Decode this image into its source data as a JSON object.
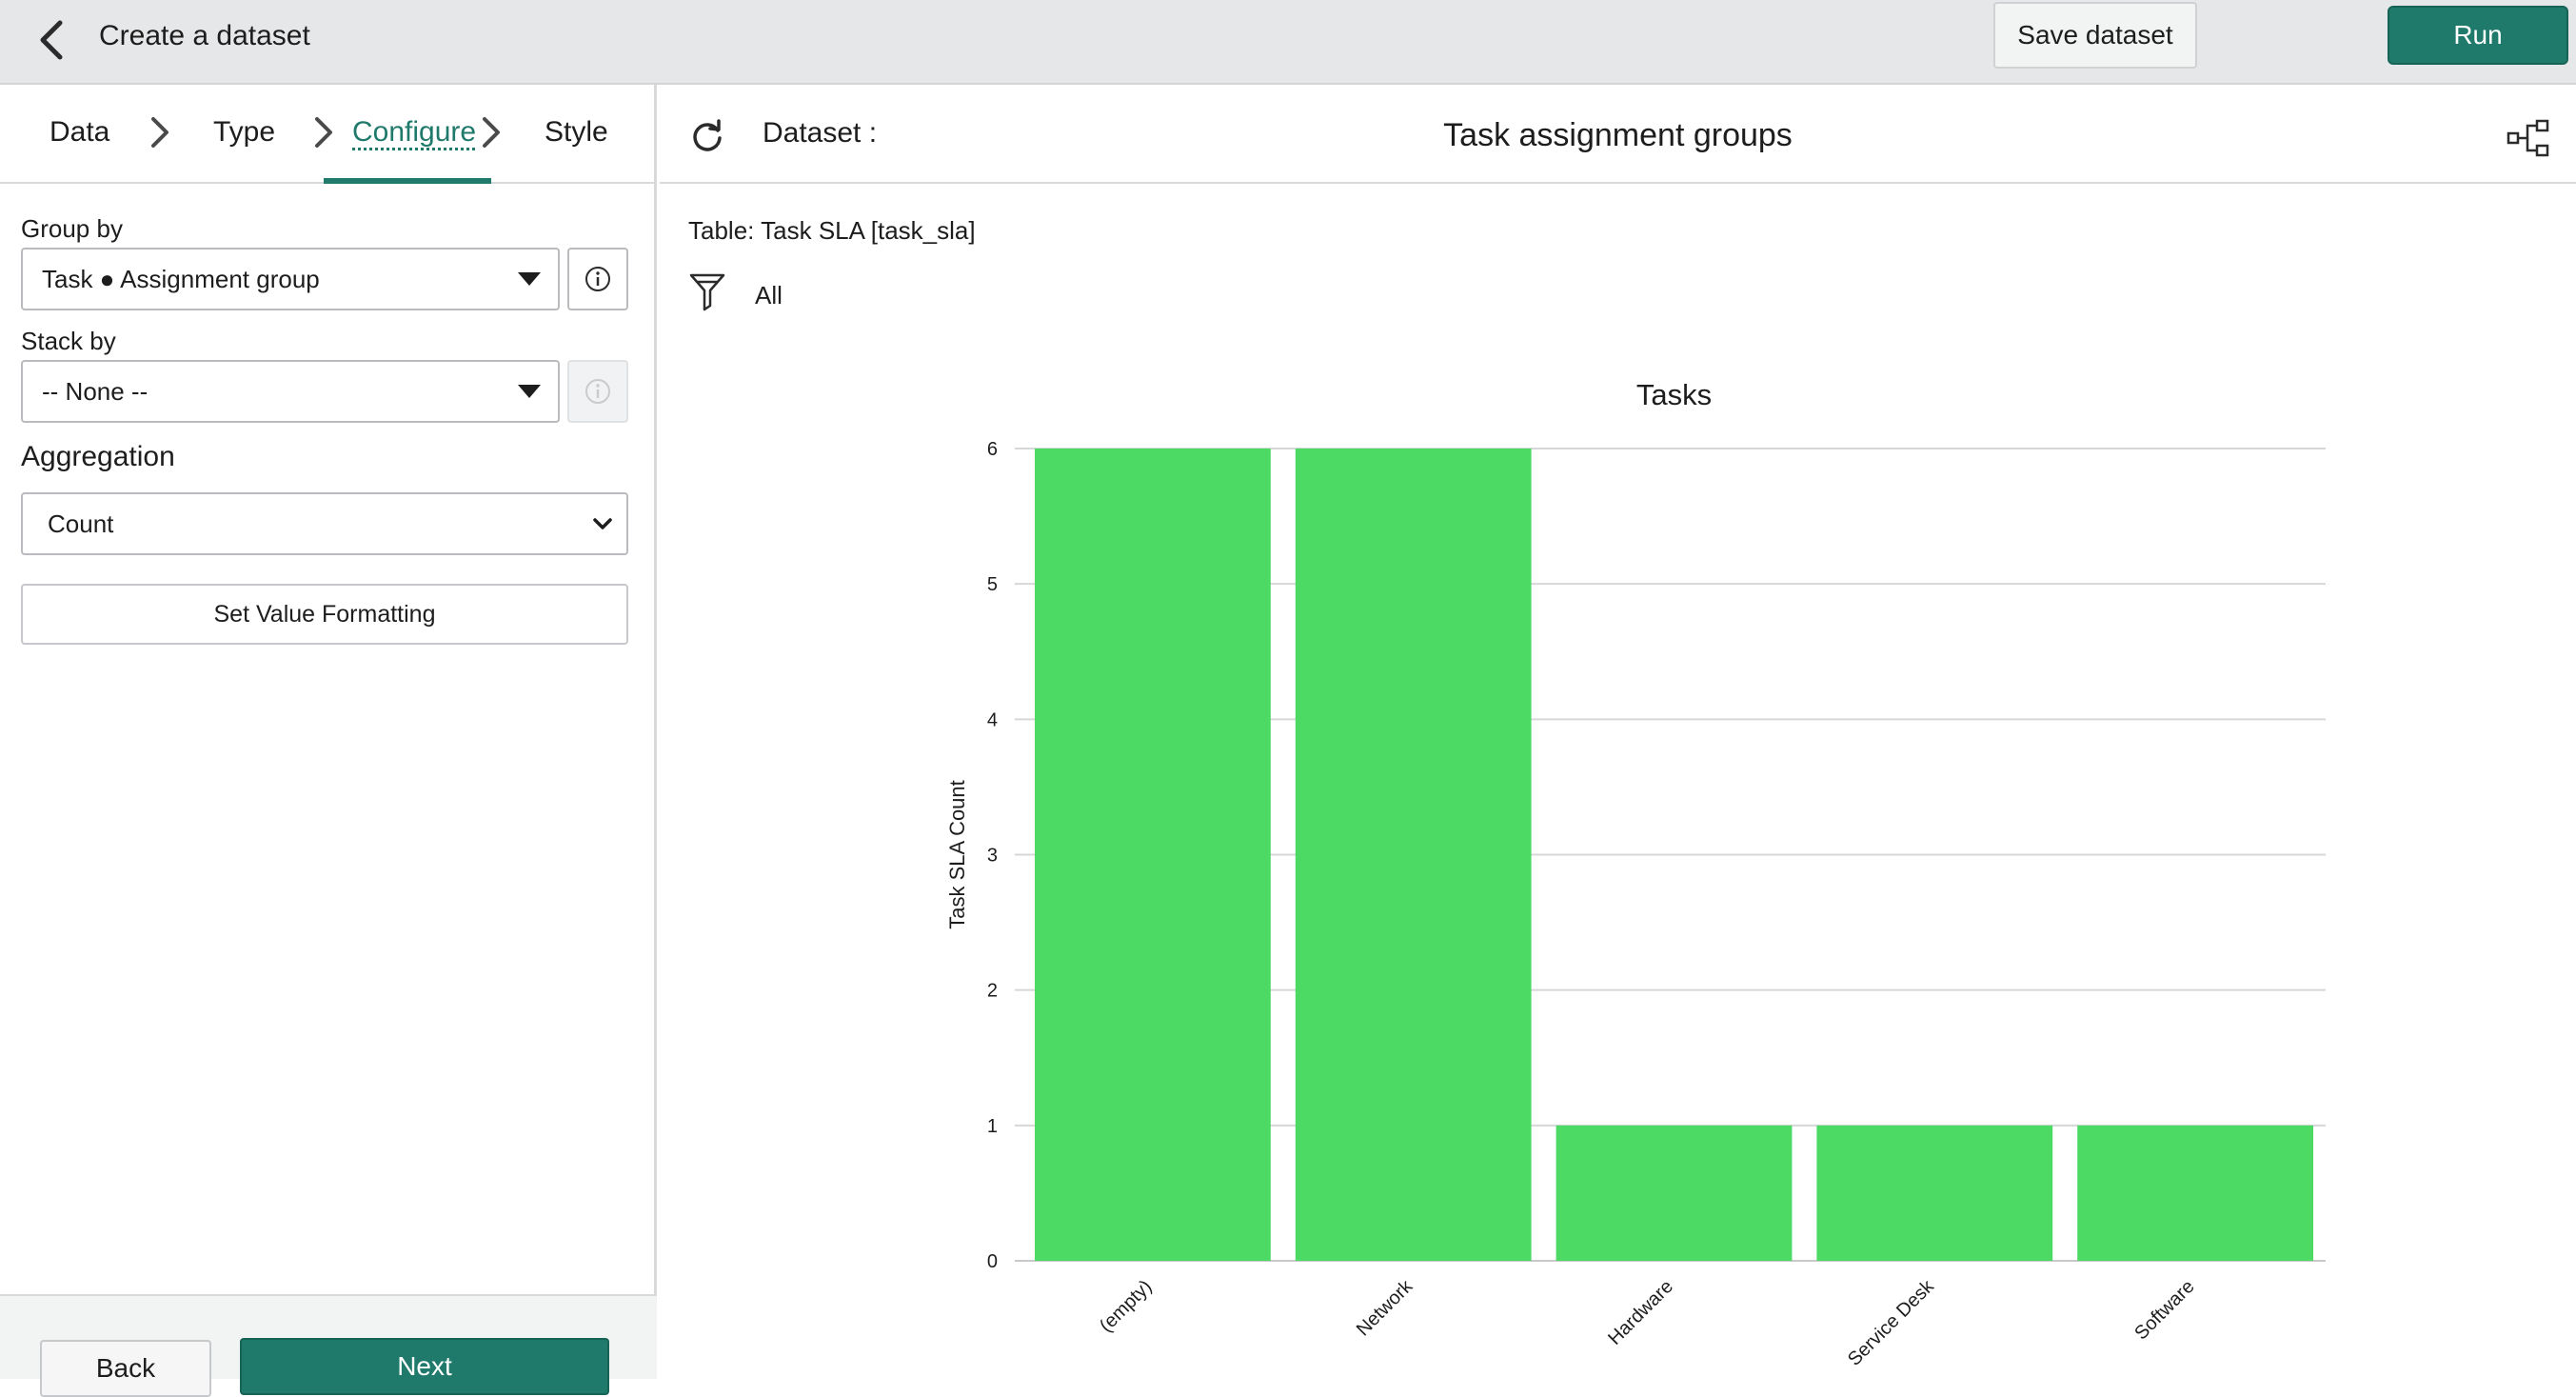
{
  "header": {
    "title": "Create a dataset",
    "save_label": "Save dataset",
    "run_label": "Run"
  },
  "steps": [
    "Data",
    "Type",
    "Configure",
    "Style"
  ],
  "active_step": "Configure",
  "config": {
    "group_by_label": "Group by",
    "group_by_value": "Task ● Assignment group",
    "stack_by_label": "Stack by",
    "stack_by_value": "-- None --",
    "aggregation_label": "Aggregation",
    "aggregation_value": "Count",
    "format_button": "Set Value Formatting"
  },
  "footer": {
    "back_label": "Back",
    "next_label": "Next"
  },
  "dataset": {
    "label": "Dataset :",
    "name": "Task assignment groups",
    "table": "Table: Task SLA [task_sla]",
    "filter": "All"
  },
  "colors": {
    "accent": "#1f7a6b",
    "bar": "#4cd964"
  },
  "chart_data": {
    "type": "bar",
    "title": "Tasks",
    "xlabel": "",
    "ylabel": "Task SLA Count",
    "categories": [
      "(empty)",
      "Network",
      "Hardware",
      "Service Desk",
      "Software"
    ],
    "values": [
      6,
      6,
      1,
      1,
      1
    ],
    "ylim": [
      0,
      6
    ],
    "yticks": [
      0,
      1,
      2,
      3,
      4,
      5,
      6
    ],
    "grid": true,
    "legend": "none"
  }
}
